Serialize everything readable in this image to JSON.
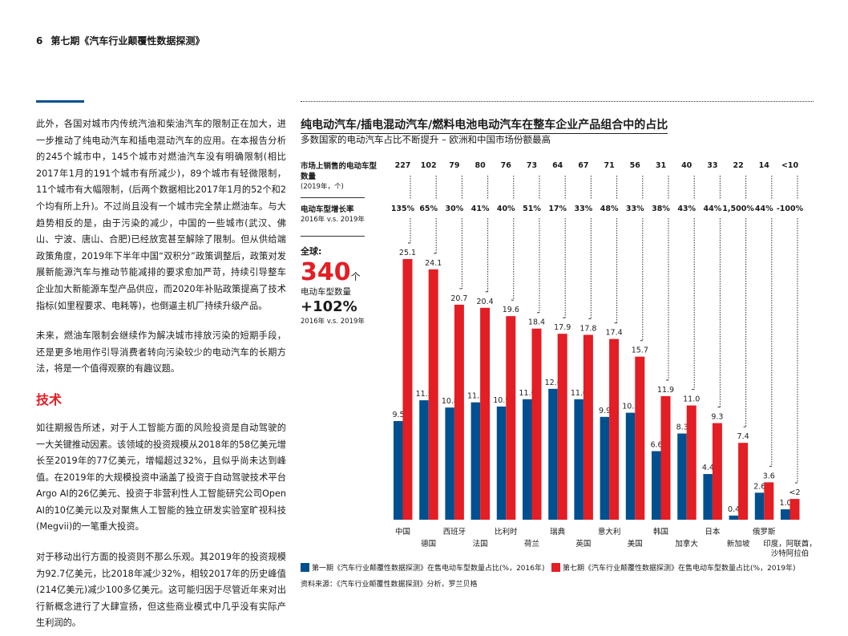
{
  "header": {
    "page_number": "6",
    "title": "第七期《汽车行业颠覆性数据探测》"
  },
  "left": {
    "p1": "此外，各国对城市内传统汽油和柴油汽车的限制正在加大，进一步推动了纯电动汽车和插电混动汽车的应用。在本报告分析的245个城市中，145个城市对燃油汽车没有明确限制(相比2017年1月的191个城市有所减少)，89个城市有轻微限制，11个城市有大幅限制，(后两个数据相比2017年1月的52个和2个均有所上升)。不过尚且没有一个城市完全禁止燃油车。与大趋势相反的是，由于污染的减少，中国的一些城市(武汉、佛山、宁波、唐山、合肥)已经放宽甚至解除了限制。但从供给端政策角度，2019年下半年中国“双积分”政策调整后，政策对发展新能源汽车与推动节能减排的要求愈加严苛，持续引导整车企业加大新能源车型产品供应，而2020年补贴政策提高了技术指标(如里程要求、电耗等)，也倒逼主机厂持续升级产品。",
    "p2": "未来，燃油车限制会继续作为解决城市排放污染的短期手段，还是更多地用作引导消费者转向污染较少的电动汽车的长期方法，将是一个值得观察的有趣议题。",
    "heading": "技术",
    "p3": "如往期报告所述，对于人工智能方面的风险投资是自动驾驶的一大关键推动因素。该领域的投资规模从2018年的58亿美元增长至2019年的77亿美元，增幅超过32%，且似乎尚未达到峰值。在2019年的大规模投资中涵盖了投资于自动驾驶技术平台Argo AI的26亿美元、投资于非营利性人工智能研究公司Open AI的10亿美元以及对聚焦人工智能的独立研发实验室旷视科技(Megvii)的一笔重大投资。",
    "p4": "对于移动出行方面的投资则不那么乐观。其2019年的投资规模为92.7亿美元，比2018年减少32%，相较2017年的历史峰值(214亿美元)减少100多亿美元。这可能归因于尽管近年来对出行新概念进行了大肆宣扬，但这些商业模式中几乎没有实际产生利润的。"
  },
  "chart_data": {
    "type": "bar",
    "title": "纯电动汽车/插电混动汽车/燃料电池电动汽车在整车企业产品组合中的占比",
    "subtitle": "多数国家的电动汽车占比不断提升 – 欧洲和中国市场份额最高",
    "count_label": "市场上销售的电动车型数量",
    "count_sub": "(2019年，个)",
    "growth_label": "电动车型增长率",
    "growth_sub": "2016年 v.s. 2019年",
    "global": {
      "label": "全球:",
      "value": "340",
      "unit": "个",
      "value_label": "电动车型数量",
      "growth": "+102%",
      "growth_sub": "2016年 v.s. 2019年"
    },
    "categories": [
      "中国",
      "德国",
      "西班牙",
      "法国",
      "比利时",
      "荷兰",
      "瑞典",
      "英国",
      "意大利",
      "美国",
      "韩国",
      "加拿大",
      "日本",
      "新加坡",
      "俄罗斯",
      "印度，阿联酋，\n沙特阿拉伯"
    ],
    "counts": [
      "227",
      "102",
      "79",
      "80",
      "76",
      "73",
      "64",
      "67",
      "71",
      "56",
      "31",
      "40",
      "33",
      "22",
      "14",
      "<10"
    ],
    "growth": [
      "135%",
      "65%",
      "30%",
      "41%",
      "40%",
      "51%",
      "17%",
      "33%",
      "48%",
      "33%",
      "38%",
      "43%",
      "44%",
      "1,500%",
      "44%",
      "-100%"
    ],
    "series": [
      {
        "name": "第一期《汽车行业颠覆性数据探测》在售电动车型数量占比(%，2016年)",
        "color": "#00508f",
        "values": [
          9.5,
          11.5,
          10.8,
          11.3,
          10.9,
          11.6,
          12.6,
          11.6,
          9.9,
          10.3,
          6.6,
          8.3,
          4.4,
          0.4,
          2.6,
          1.0
        ],
        "labels": [
          "9.5",
          "11.5",
          "10.8",
          "11.3",
          "10.9",
          "11.6",
          "12.6",
          "11.6",
          "9.9",
          "10.3",
          "6.6",
          "8.3",
          "4.4",
          "0.4",
          "2.6",
          "1.0"
        ]
      },
      {
        "name": "第七期《汽车行业颠覆性数据探测》在售电动车型数量占比(%，2019年)",
        "color": "#e31e24",
        "values": [
          25.1,
          24.1,
          20.7,
          20.4,
          19.6,
          18.4,
          17.9,
          17.8,
          17.4,
          15.7,
          11.9,
          11.0,
          9.3,
          7.4,
          3.6,
          2
        ],
        "labels": [
          "25.1",
          "24.1",
          "20.7",
          "20.4",
          "19.6",
          "18.4",
          "17.9",
          "17.8",
          "17.4",
          "15.7",
          "11.9",
          "11.0",
          "9.3",
          "7.4",
          "3.6",
          "<2"
        ]
      }
    ],
    "source": "资料来源：《汽车行业颠覆性数据探测》分析，罗兰贝格"
  }
}
